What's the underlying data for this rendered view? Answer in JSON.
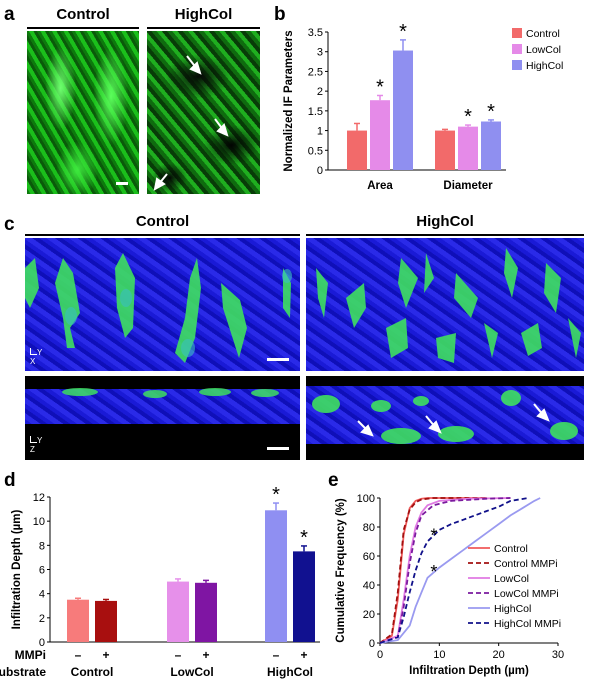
{
  "panels": {
    "a": {
      "label": "a",
      "titles": [
        "Control",
        "HighCol"
      ]
    },
    "b": {
      "label": "b"
    },
    "c": {
      "label": "c",
      "titles": [
        "Control",
        "HighCol"
      ],
      "axis_xy": {
        "y": "Y",
        "x": "X"
      },
      "axis_z": {
        "y": "Y",
        "z": "Z"
      }
    },
    "d": {
      "label": "d"
    },
    "e": {
      "label": "e"
    }
  },
  "chart_data": [
    {
      "type": "bar",
      "panel": "b",
      "ylabel": "Normalized IF Parameters",
      "categories": [
        "Area",
        "Diameter"
      ],
      "ylim": [
        0,
        3.5
      ],
      "yticks": [
        "0",
        "0.5",
        "1",
        "1.5",
        "2",
        "2.5",
        "3",
        "3.5"
      ],
      "series": [
        {
          "name": "Control",
          "color": "#f26a6a",
          "values": [
            1.0,
            1.0
          ],
          "err": [
            0.18,
            0.03
          ],
          "star": [
            false,
            false
          ]
        },
        {
          "name": "LowCol",
          "color": "#e58ae8",
          "values": [
            1.77,
            1.1
          ],
          "err": [
            0.12,
            0.04
          ],
          "star": [
            true,
            true
          ]
        },
        {
          "name": "HighCol",
          "color": "#8f8ff0",
          "values": [
            3.03,
            1.23
          ],
          "err": [
            0.27,
            0.04
          ],
          "star": [
            true,
            true
          ]
        }
      ],
      "legend_position": "top-right"
    },
    {
      "type": "bar",
      "panel": "d",
      "ylabel": "Infiltration Depth (µm)",
      "ylim": [
        0,
        12
      ],
      "yticks": [
        "0",
        "2",
        "4",
        "6",
        "8",
        "10",
        "12"
      ],
      "row_labels": {
        "mmpi": "MMPi",
        "substrate": "Substrate"
      },
      "mmpi_marks": [
        "–",
        "+",
        "–",
        "+",
        "–",
        "+"
      ],
      "groups": [
        "Control",
        "LowCol",
        "HighCol"
      ],
      "bars": [
        {
          "group": "Control",
          "mmpi": "–",
          "value": 3.5,
          "err": 0.12,
          "color": "#f77b7b",
          "star": false
        },
        {
          "group": "Control",
          "mmpi": "+",
          "value": 3.4,
          "err": 0.12,
          "color": "#a80f0f",
          "star": false
        },
        {
          "group": "LowCol",
          "mmpi": "–",
          "value": 5.0,
          "err": 0.22,
          "color": "#e690ea",
          "star": false
        },
        {
          "group": "LowCol",
          "mmpi": "+",
          "value": 4.9,
          "err": 0.2,
          "color": "#7f15a3",
          "star": false
        },
        {
          "group": "HighCol",
          "mmpi": "–",
          "value": 10.9,
          "err": 0.6,
          "color": "#8f8ff2",
          "star": true
        },
        {
          "group": "HighCol",
          "mmpi": "+",
          "value": 7.5,
          "err": 0.45,
          "color": "#111190",
          "star": true
        }
      ]
    },
    {
      "type": "line",
      "panel": "e",
      "xlabel": "Infiltration Depth (µm)",
      "ylabel": "Cumulative Frequency (%)",
      "xlim": [
        0,
        30
      ],
      "ylim": [
        0,
        100
      ],
      "xticks": [
        "0",
        "10",
        "20",
        "30"
      ],
      "yticks": [
        "0",
        "20",
        "40",
        "60",
        "80",
        "100"
      ],
      "legend_position": "right",
      "series": [
        {
          "name": "Control",
          "color": "#f05a5a",
          "dash": false,
          "x": [
            0,
            2,
            3,
            4,
            5,
            6,
            7,
            8,
            18
          ],
          "y": [
            0,
            5,
            30,
            75,
            93,
            98,
            99.5,
            100,
            100
          ]
        },
        {
          "name": "Control MMPi",
          "color": "#a31010",
          "dash": true,
          "x": [
            0,
            2,
            3,
            4,
            5,
            6,
            7,
            9,
            18
          ],
          "y": [
            0,
            6,
            35,
            78,
            92,
            97,
            99,
            100,
            100
          ]
        },
        {
          "name": "LowCol",
          "color": "#e07ae3",
          "dash": false,
          "x": [
            0,
            3,
            4,
            5,
            6,
            7,
            8,
            10,
            15,
            22
          ],
          "y": [
            0,
            5,
            30,
            60,
            80,
            90,
            95,
            98,
            99.5,
            100
          ]
        },
        {
          "name": "LowCol MMPi",
          "color": "#7a1a9e",
          "dash": true,
          "x": [
            0,
            3,
            4,
            5,
            6,
            7,
            9,
            12,
            18,
            22
          ],
          "y": [
            0,
            4,
            25,
            55,
            76,
            88,
            95,
            98,
            99.5,
            100
          ]
        },
        {
          "name": "HighCol",
          "color": "#9a9af0",
          "dash": false,
          "x": [
            0,
            3,
            5,
            6,
            7,
            8,
            10,
            12,
            14,
            16,
            18,
            20,
            22,
            24,
            26,
            27
          ],
          "y": [
            0,
            2,
            12,
            25,
            35,
            45,
            52,
            58,
            64,
            70,
            76,
            82,
            88,
            93,
            98,
            100
          ]
        },
        {
          "name": "HighCol MMPi",
          "color": "#11118a",
          "dash": true,
          "x": [
            0,
            3,
            4,
            5,
            6,
            7,
            8,
            10,
            12,
            14,
            16,
            18,
            20,
            22,
            25
          ],
          "y": [
            0,
            4,
            18,
            35,
            50,
            62,
            70,
            78,
            82,
            85,
            88,
            91,
            94,
            98,
            100
          ]
        }
      ],
      "stars": [
        "*",
        "*"
      ]
    }
  ]
}
